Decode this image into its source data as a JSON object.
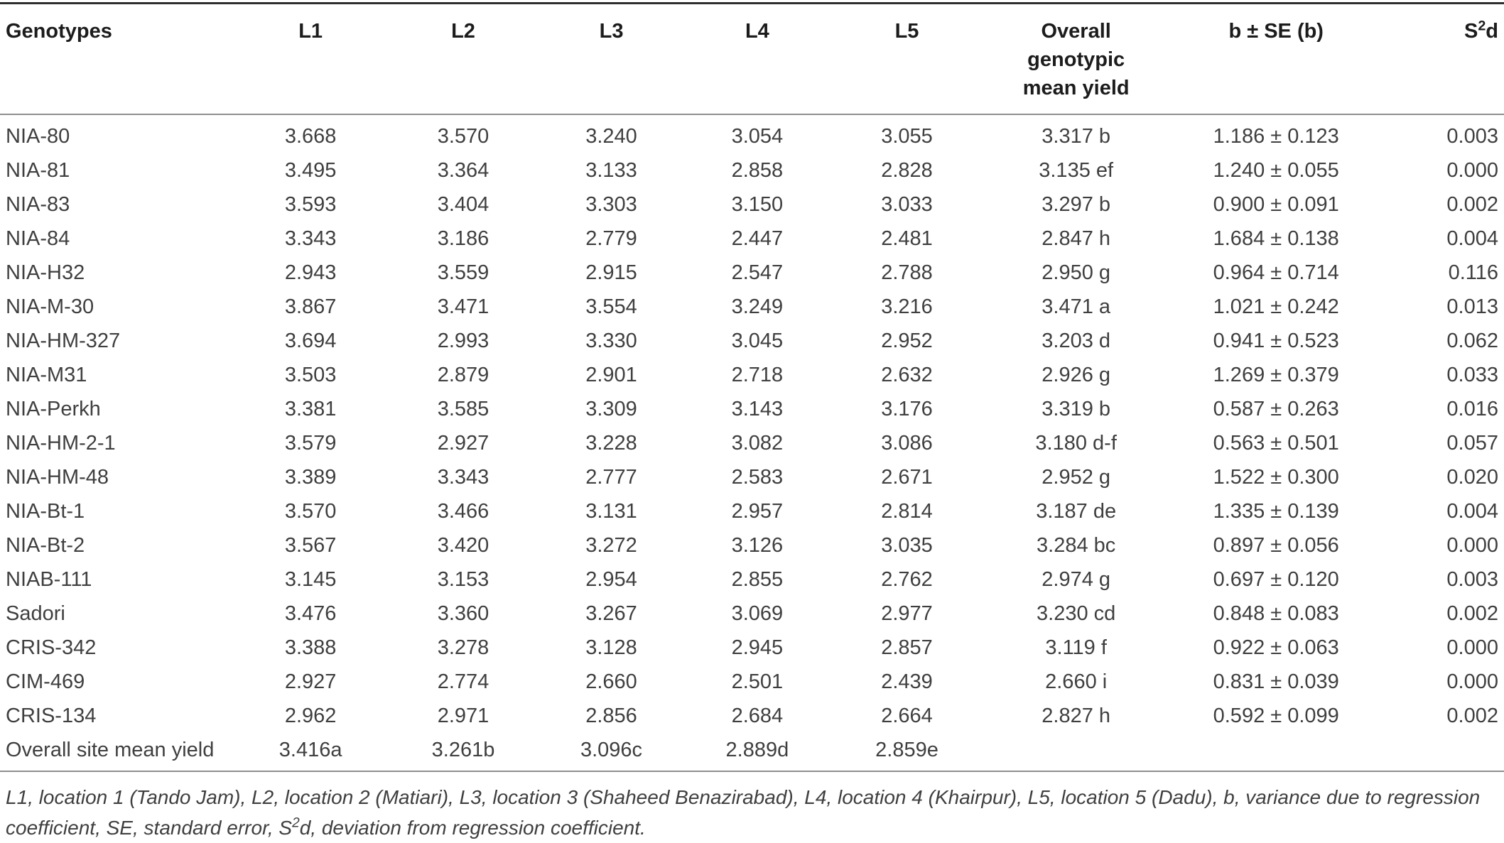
{
  "table": {
    "headers": {
      "genotypes": "Genotypes",
      "l1": "L1",
      "l2": "L2",
      "l3": "L3",
      "l4": "L4",
      "l5": "L5",
      "overall": "Overall genotypic mean yield",
      "b_se": "b ± SE (b)",
      "s2d": {
        "pre": "S",
        "sup": "2",
        "post": "d"
      }
    },
    "rows": [
      {
        "genotype": "NIA-80",
        "l1": "3.668",
        "l2": "3.570",
        "l3": "3.240",
        "l4": "3.054",
        "l5": "3.055",
        "overall": "3.317 b",
        "b_se": "1.186 ± 0.123",
        "s2d": "0.003"
      },
      {
        "genotype": "NIA-81",
        "l1": "3.495",
        "l2": "3.364",
        "l3": "3.133",
        "l4": "2.858",
        "l5": "2.828",
        "overall": "3.135 ef",
        "b_se": "1.240 ± 0.055",
        "s2d": "0.000"
      },
      {
        "genotype": "NIA-83",
        "l1": "3.593",
        "l2": "3.404",
        "l3": "3.303",
        "l4": "3.150",
        "l5": "3.033",
        "overall": "3.297 b",
        "b_se": "0.900 ± 0.091",
        "s2d": "0.002"
      },
      {
        "genotype": "NIA-84",
        "l1": "3.343",
        "l2": "3.186",
        "l3": "2.779",
        "l4": "2.447",
        "l5": "2.481",
        "overall": "2.847 h",
        "b_se": "1.684 ± 0.138",
        "s2d": "0.004"
      },
      {
        "genotype": "NIA-H32",
        "l1": "2.943",
        "l2": "3.559",
        "l3": "2.915",
        "l4": "2.547",
        "l5": "2.788",
        "overall": "2.950 g",
        "b_se": "0.964 ± 0.714",
        "s2d": "0.116"
      },
      {
        "genotype": "NIA-M-30",
        "l1": "3.867",
        "l2": "3.471",
        "l3": "3.554",
        "l4": "3.249",
        "l5": "3.216",
        "overall": "3.471 a",
        "b_se": "1.021 ± 0.242",
        "s2d": "0.013"
      },
      {
        "genotype": "NIA-HM-327",
        "l1": "3.694",
        "l2": "2.993",
        "l3": "3.330",
        "l4": "3.045",
        "l5": "2.952",
        "overall": "3.203 d",
        "b_se": "0.941 ± 0.523",
        "s2d": "0.062"
      },
      {
        "genotype": "NIA-M31",
        "l1": "3.503",
        "l2": "2.879",
        "l3": "2.901",
        "l4": "2.718",
        "l5": "2.632",
        "overall": "2.926 g",
        "b_se": "1.269 ± 0.379",
        "s2d": "0.033"
      },
      {
        "genotype": "NIA-Perkh",
        "l1": "3.381",
        "l2": "3.585",
        "l3": "3.309",
        "l4": "3.143",
        "l5": "3.176",
        "overall": "3.319 b",
        "b_se": "0.587 ± 0.263",
        "s2d": "0.016"
      },
      {
        "genotype": "NIA-HM-2-1",
        "l1": "3.579",
        "l2": "2.927",
        "l3": "3.228",
        "l4": "3.082",
        "l5": "3.086",
        "overall": "3.180 d-f",
        "b_se": "0.563 ± 0.501",
        "s2d": "0.057"
      },
      {
        "genotype": "NIA-HM-48",
        "l1": "3.389",
        "l2": "3.343",
        "l3": "2.777",
        "l4": "2.583",
        "l5": "2.671",
        "overall": "2.952 g",
        "b_se": "1.522 ± 0.300",
        "s2d": "0.020"
      },
      {
        "genotype": "NIA-Bt-1",
        "l1": "3.570",
        "l2": "3.466",
        "l3": "3.131",
        "l4": "2.957",
        "l5": "2.814",
        "overall": "3.187 de",
        "b_se": "1.335 ± 0.139",
        "s2d": "0.004"
      },
      {
        "genotype": "NIA-Bt-2",
        "l1": "3.567",
        "l2": "3.420",
        "l3": "3.272",
        "l4": "3.126",
        "l5": "3.035",
        "overall": "3.284 bc",
        "b_se": "0.897 ± 0.056",
        "s2d": "0.000"
      },
      {
        "genotype": "NIAB-111",
        "l1": "3.145",
        "l2": "3.153",
        "l3": "2.954",
        "l4": "2.855",
        "l5": "2.762",
        "overall": "2.974 g",
        "b_se": "0.697 ± 0.120",
        "s2d": "0.003"
      },
      {
        "genotype": "Sadori",
        "l1": "3.476",
        "l2": "3.360",
        "l3": "3.267",
        "l4": "3.069",
        "l5": "2.977",
        "overall": "3.230 cd",
        "b_se": "0.848 ± 0.083",
        "s2d": "0.002"
      },
      {
        "genotype": "CRIS-342",
        "l1": "3.388",
        "l2": "3.278",
        "l3": "3.128",
        "l4": "2.945",
        "l5": "2.857",
        "overall": "3.119 f",
        "b_se": "0.922 ± 0.063",
        "s2d": "0.000"
      },
      {
        "genotype": "CIM-469",
        "l1": "2.927",
        "l2": "2.774",
        "l3": "2.660",
        "l4": "2.501",
        "l5": "2.439",
        "overall": "2.660 i",
        "b_se": "0.831 ± 0.039",
        "s2d": "0.000"
      },
      {
        "genotype": "CRIS-134",
        "l1": "2.962",
        "l2": "2.971",
        "l3": "2.856",
        "l4": "2.684",
        "l5": "2.664",
        "overall": "2.827 h",
        "b_se": "0.592 ± 0.099",
        "s2d": "0.002"
      },
      {
        "genotype": "Overall site mean yield",
        "l1": "3.416a",
        "l2": "3.261b",
        "l3": "3.096c",
        "l4": "2.889d",
        "l5": "2.859e",
        "overall": "",
        "b_se": "",
        "s2d": ""
      }
    ]
  },
  "footnote": {
    "part1": "L1, location 1 (Tando Jam), L2, location 2 (Matiari), L3, location 3 (Shaheed Benazirabad), L4, location 4 (Khairpur), L5, location 5 (Dadu), b, variance due to regression coefficient, SE, standard error, S",
    "sup": "2",
    "part2": "d, deviation from regression coefficient."
  },
  "colors": {
    "header_text": "#1c1c1c",
    "body_text": "#3f3f3f",
    "rule_dark": "#2e2e2e",
    "rule_light": "#8e8e8e",
    "background": "#ffffff"
  }
}
